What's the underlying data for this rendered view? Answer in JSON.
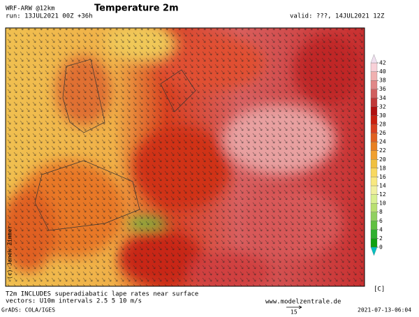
{
  "header": {
    "model": "WRF-ARW @12km",
    "run": "run: 13JUL2021 00Z +36h",
    "title": "Temperature 2m",
    "valid": "valid: ???, 14JUL2021 12Z"
  },
  "colorbar": {
    "ticks": [
      0,
      2,
      4,
      6,
      8,
      10,
      12,
      14,
      16,
      18,
      20,
      22,
      24,
      26,
      28,
      30,
      32,
      34,
      36,
      38,
      40,
      42
    ],
    "colors": [
      "#10a010",
      "#30b030",
      "#60c040",
      "#90d060",
      "#b8e070",
      "#d8f090",
      "#f0f0a0",
      "#f8e880",
      "#f8d860",
      "#f0c040",
      "#f0a030",
      "#e88020",
      "#e06020",
      "#d84020",
      "#c82010",
      "#b01010",
      "#c03838",
      "#d06060",
      "#e08888",
      "#f0b0b0",
      "#f8d0d8"
    ],
    "below_color": "#00c0c0",
    "above_color": "#f0e0f0",
    "unit": "[C]"
  },
  "credit": "(c) Janek Zimmer",
  "footer": {
    "note": "T2m INCLUDES superadiabatic lape rates near surface",
    "vectors": "vectors: U10m intervals 2.5 5 10 m/s",
    "site": "www.modelzentrale.de",
    "vector_scale": "15",
    "software": "GrADS: COLA/IGES",
    "timestamp": "2021-07-13-06:04"
  }
}
